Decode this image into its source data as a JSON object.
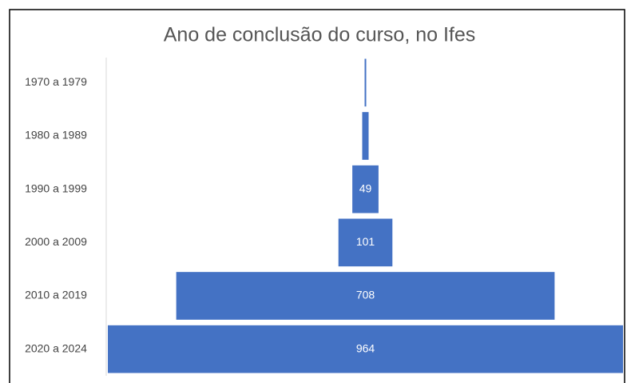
{
  "chart_data": {
    "type": "funnel",
    "title": "Ano de conclusão do curso, no Ifes",
    "categories": [
      "1970 a 1979",
      "1980 a 1989",
      "1990 a 1999",
      "2000 a 2009",
      "2010 a 2019",
      "2020 a 2024"
    ],
    "values": [
      3,
      12,
      49,
      101,
      708,
      964
    ],
    "color": "#4472c4"
  }
}
